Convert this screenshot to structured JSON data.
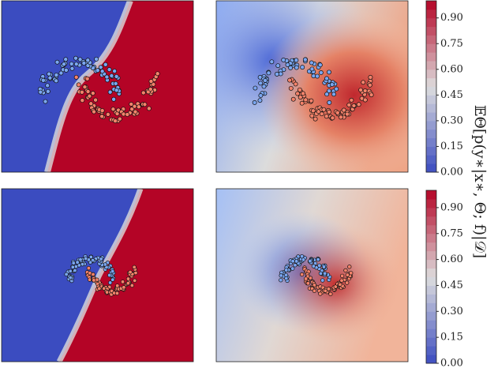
{
  "chart_data": [
    {
      "type": "colorbar",
      "ylim": [
        0,
        1
      ],
      "yticks": [
        {
          "value": 0,
          "label": "0.00"
        },
        {
          "value": 0.15,
          "label": "0.15"
        },
        {
          "value": 0.3,
          "label": "0.30"
        },
        {
          "value": 0.45,
          "label": "0.45"
        },
        {
          "value": 0.6,
          "label": "0.60"
        },
        {
          "value": 0.75,
          "label": "0.75"
        },
        {
          "value": 0.9,
          "label": "0.90"
        }
      ]
    },
    {
      "type": "colorbar",
      "ylim": [
        0,
        1
      ],
      "yticks": [
        {
          "value": 0,
          "label": "0.00"
        },
        {
          "value": 0.15,
          "label": "0.15"
        },
        {
          "value": 0.3,
          "label": "0.30"
        },
        {
          "value": 0.45,
          "label": "0.45"
        },
        {
          "value": 0.6,
          "label": "0.60"
        },
        {
          "value": 0.75,
          "label": "0.75"
        },
        {
          "value": 0.9,
          "label": "0.90"
        }
      ]
    }
  ],
  "colorbar_label": "𝔼Θ[p(y∗|x∗, Θ; f)|𝒟]"
}
